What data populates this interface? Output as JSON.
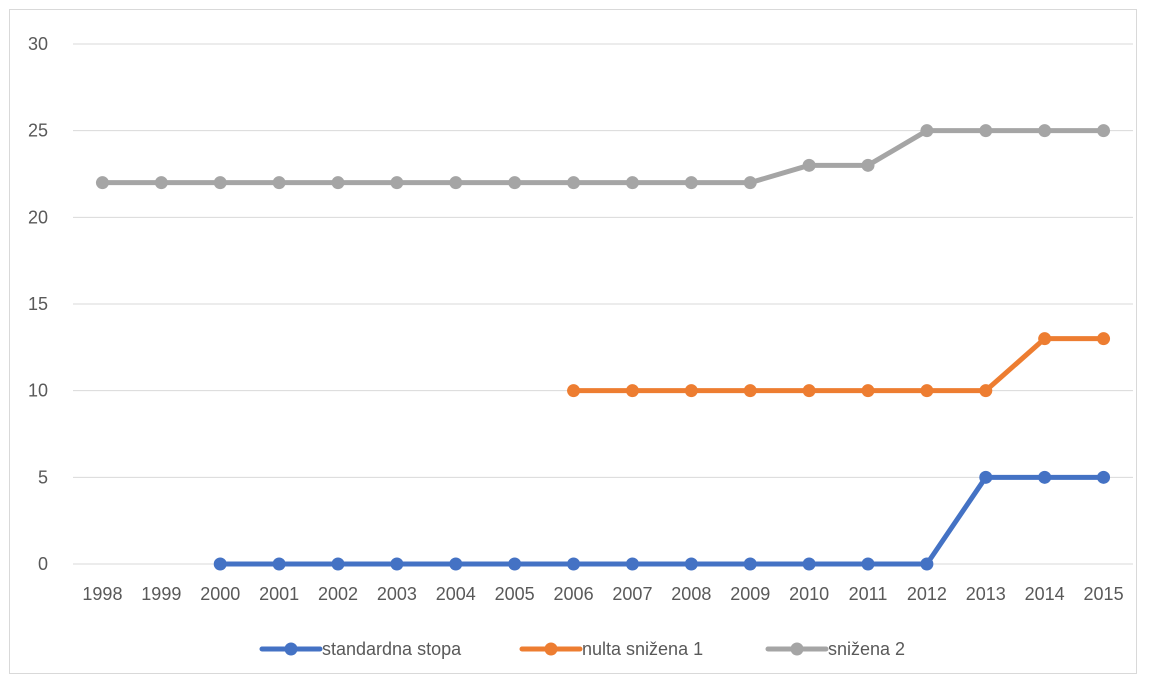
{
  "chart_data": {
    "type": "line",
    "title": "",
    "xlabel": "",
    "ylabel": "",
    "ylim": [
      0,
      30
    ],
    "yticks": [
      0,
      5,
      10,
      15,
      20,
      25,
      30
    ],
    "grid": true,
    "legend_position": "bottom",
    "categories": [
      "1998",
      "1999",
      "2000",
      "2001",
      "2002",
      "2003",
      "2004",
      "2005",
      "2006",
      "2007",
      "2008",
      "2009",
      "2010",
      "2011",
      "2012",
      "2013",
      "2014",
      "2015"
    ],
    "series": [
      {
        "name": "standardna stopa",
        "color": "#4472c4",
        "values": [
          null,
          null,
          0,
          0,
          0,
          0,
          0,
          0,
          0,
          0,
          0,
          0,
          0,
          0,
          0,
          5,
          5,
          5
        ]
      },
      {
        "name": "nulta snižena 1",
        "color": "#ed7d31",
        "values": [
          null,
          null,
          null,
          null,
          null,
          null,
          null,
          null,
          10,
          10,
          10,
          10,
          10,
          10,
          10,
          10,
          13,
          13
        ]
      },
      {
        "name": "snižena 2",
        "color": "#a5a5a5",
        "values": [
          22,
          22,
          22,
          22,
          22,
          22,
          22,
          22,
          22,
          22,
          22,
          22,
          23,
          23,
          25,
          25,
          25,
          25
        ]
      }
    ]
  }
}
